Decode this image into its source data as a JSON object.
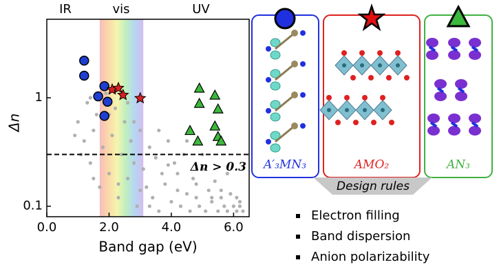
{
  "chart_data": {
    "type": "scatter",
    "xlabel": "Band gap (eV)",
    "ylabel": "Δn",
    "xlim": [
      0,
      6.5
    ],
    "ylim": [
      0.08,
      5.3
    ],
    "log_y": true,
    "xticks": [
      {
        "value": 0,
        "label": "0.0"
      },
      {
        "value": 2,
        "label": "2.0"
      },
      {
        "value": 4,
        "label": "4.0"
      },
      {
        "value": 6,
        "label": "6.0"
      }
    ],
    "yticks": [
      0.1,
      1
    ],
    "region_labels": [
      "IR",
      "vis",
      "UV"
    ],
    "threshold": 0.3,
    "threshold_label": "Δn > 0.3",
    "series": [
      {
        "color": "#b0b0b0",
        "marker": "dot",
        "x": [
          1.0,
          1.2,
          1.3,
          1.4,
          1.5,
          1.6,
          1.7,
          1.8,
          1.9,
          2.0,
          2.1,
          2.2,
          2.3,
          2.4,
          2.5,
          2.6,
          2.7,
          2.8,
          2.9,
          3.0,
          3.1,
          3.2,
          3.3,
          3.4,
          3.5,
          3.6,
          3.7,
          3.8,
          3.9,
          4.0,
          4.1,
          4.2,
          4.3,
          4.4,
          4.5,
          4.6,
          4.7,
          4.8,
          4.9,
          5.0,
          5.1,
          5.2,
          5.3,
          5.4,
          5.5,
          5.6,
          5.7,
          5.8,
          5.9,
          6.0,
          6.1,
          6.2,
          6.3,
          1.1,
          1.5,
          2.0,
          2.6,
          3.0,
          3.6,
          4.2,
          4.8,
          5.3,
          5.8,
          6.2,
          0.9,
          1.4,
          2.3,
          2.8,
          3.3,
          3.9,
          4.5,
          5.0,
          5.6,
          6.1
        ],
        "y": [
          0.6,
          0.4,
          0.9,
          0.25,
          0.5,
          0.7,
          0.15,
          0.35,
          1.1,
          0.2,
          0.45,
          0.8,
          0.12,
          0.3,
          0.6,
          0.18,
          0.4,
          0.25,
          0.1,
          0.5,
          0.22,
          0.15,
          0.35,
          0.12,
          0.28,
          0.09,
          0.2,
          0.16,
          0.4,
          0.11,
          0.25,
          0.14,
          0.1,
          0.3,
          0.13,
          0.09,
          0.18,
          0.12,
          0.1,
          0.22,
          0.09,
          0.14,
          0.11,
          0.17,
          0.09,
          0.12,
          0.1,
          0.09,
          0.13,
          0.1,
          0.09,
          0.11,
          0.09,
          0.3,
          0.18,
          0.7,
          0.9,
          0.14,
          0.5,
          0.2,
          0.16,
          0.12,
          0.2,
          0.1,
          0.45,
          1.0,
          0.16,
          0.6,
          0.1,
          0.24,
          0.4,
          0.3,
          0.14,
          0.12
        ]
      },
      {
        "color": "#1f3fd0",
        "marker": "circle",
        "x": [
          1.2,
          1.2,
          1.65,
          1.85,
          1.85,
          1.95
        ],
        "y": [
          2.2,
          1.6,
          1.03,
          1.28,
          0.68,
          0.92
        ]
      },
      {
        "color": "#d62020",
        "marker": "star",
        "x": [
          2.1,
          2.3,
          2.45,
          3.0
        ],
        "y": [
          1.19,
          1.23,
          1.06,
          0.99
        ]
      },
      {
        "color": "#3cb83c",
        "marker": "triangle",
        "x": [
          4.9,
          5.4,
          4.9,
          5.5,
          4.6,
          5.4,
          5.5,
          4.85,
          5.6
        ],
        "y": [
          1.23,
          1.06,
          0.89,
          0.79,
          0.5,
          0.55,
          0.44,
          0.4,
          0.4
        ]
      }
    ]
  },
  "panels": [
    {
      "label": "A′₃MN₃",
      "color": "#2030e0"
    },
    {
      "label": "AMO₂",
      "color": "#e02020"
    },
    {
      "label": "AN₃",
      "color": "#40b040"
    }
  ],
  "design_rules": {
    "title": "Design rules",
    "items": [
      "Electron filling",
      "Band dispersion",
      "Anion polarizability"
    ]
  }
}
